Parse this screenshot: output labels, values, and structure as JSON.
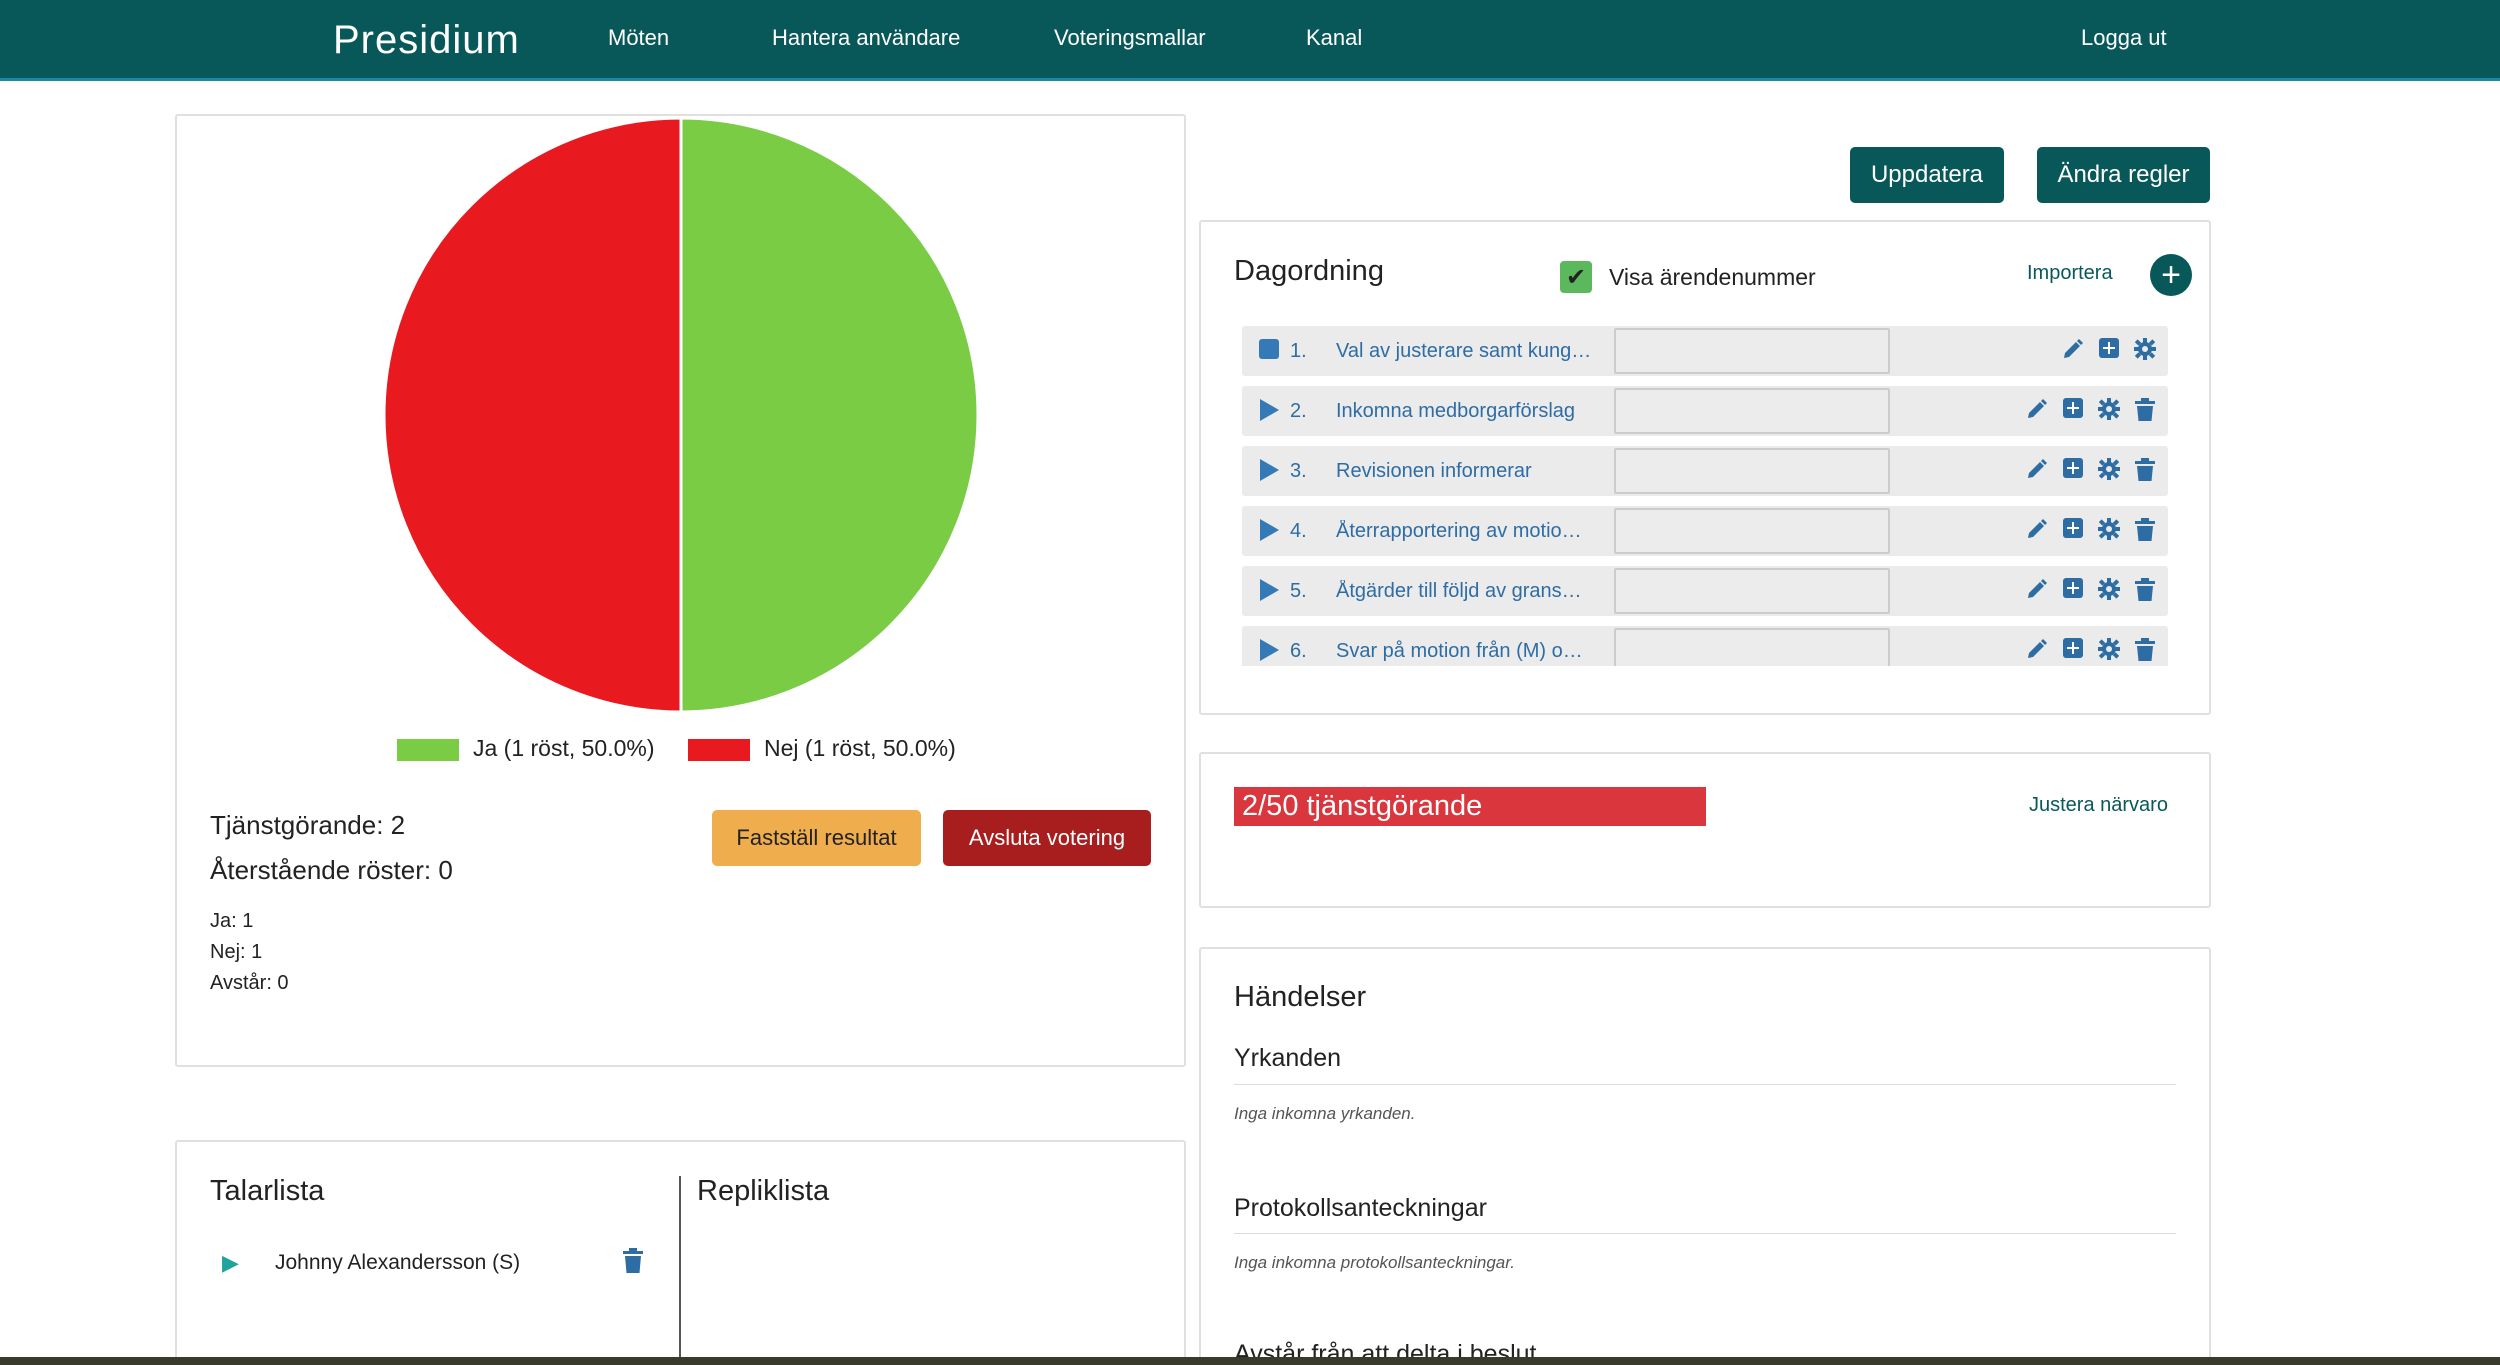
{
  "navbar": {
    "brand": "Presidium",
    "links": [
      "Möten",
      "Hantera användare",
      "Voteringsmallar",
      "Kanal"
    ],
    "logout": "Logga ut"
  },
  "vote": {
    "legend": [
      "Ja (1 röst, 50.0%)",
      "Nej (1 röst, 50.0%)"
    ],
    "on_duty": "Tjänstgörande: 2",
    "remaining": "Återstående röster: 0",
    "tally": [
      "Ja: 1",
      "Nej: 1",
      "Avstår: 0"
    ],
    "confirm_button": "Fastställ resultat",
    "end_button": "Avsluta votering"
  },
  "chart_data": {
    "type": "pie",
    "categories": [
      "Ja (1 röst, 50.0%)",
      "Nej (1 röst, 50.0%)"
    ],
    "values": [
      1,
      1
    ],
    "colors": [
      "#7acc45",
      "#e8191f"
    ],
    "legend_position": "bottom"
  },
  "speakers": {
    "title": "Talarlista",
    "reply_title": "Repliklista",
    "items": [
      "Johnny Alexandersson (S)"
    ]
  },
  "actions": {
    "update": "Uppdatera",
    "change_rules": "Ändra regler"
  },
  "agenda": {
    "title": "Dagordning",
    "show_numbers_label": "Visa ärendenummer",
    "import_link": "Importera",
    "items": [
      {
        "num": "1.",
        "text": "Val av justerare samt kung…",
        "active": true
      },
      {
        "num": "2.",
        "text": "Inkomna medborgarförslag",
        "active": false
      },
      {
        "num": "3.",
        "text": "Revisionen informerar",
        "active": false
      },
      {
        "num": "4.",
        "text": "Återrapportering av motio…",
        "active": false
      },
      {
        "num": "5.",
        "text": "Åtgärder till följd av grans…",
        "active": false
      },
      {
        "num": "6.",
        "text": "Svar på motion från (M) o…",
        "active": false
      }
    ]
  },
  "attendance": {
    "label": "2/50 tjänstgörande",
    "adjust_link": "Justera närvaro"
  },
  "events": {
    "title": "Händelser",
    "motions_title": "Yrkanden",
    "motions_empty": "Inga inkomna yrkanden.",
    "notes_title": "Protokollsanteckningar",
    "notes_empty": "Inga inkomna protokollsanteckningar.",
    "abstain_title": "Avstår från att delta i beslut"
  }
}
